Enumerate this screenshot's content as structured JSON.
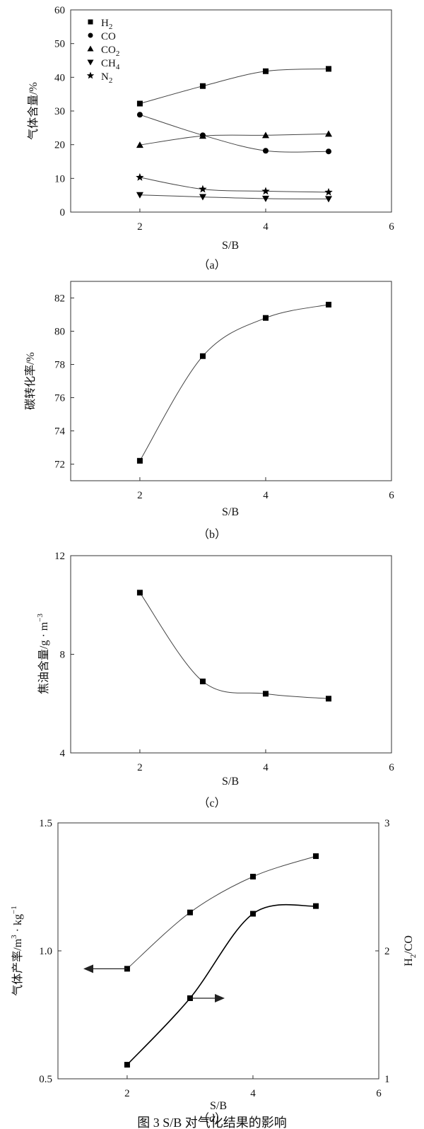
{
  "figure_caption": "图 3   S/B 对气化结果的影响",
  "chart_data": [
    {
      "type": "line",
      "caption": "（a）",
      "xlabel": "S/B",
      "ylabel": "气体含量/%",
      "xlim": [
        0.9,
        6
      ],
      "ylim": [
        0,
        60
      ],
      "xticks": [
        "2",
        "4",
        "6"
      ],
      "yticks": [
        "0",
        "10",
        "20",
        "30",
        "40",
        "50",
        "60"
      ],
      "legend_position": "top-left",
      "x": [
        2,
        3,
        4,
        5
      ],
      "series": [
        {
          "name": "H2",
          "legend_main": "H",
          "legend_sub": "2",
          "legend_tail": "",
          "marker": "square",
          "values": [
            32.2,
            37.4,
            41.8,
            42.5
          ]
        },
        {
          "name": "CO",
          "legend_main": "CO",
          "legend_sub": "",
          "legend_tail": "",
          "marker": "circle",
          "values": [
            28.9,
            22.8,
            18.2,
            18.0
          ]
        },
        {
          "name": "CO2",
          "legend_main": "CO",
          "legend_sub": "2",
          "legend_tail": "",
          "marker": "triangle-up",
          "values": [
            19.9,
            22.6,
            22.8,
            23.2
          ]
        },
        {
          "name": "CH4",
          "legend_main": "CH",
          "legend_sub": "4",
          "legend_tail": "",
          "marker": "triangle-down",
          "values": [
            5.1,
            4.5,
            4.0,
            3.9
          ]
        },
        {
          "name": "N2",
          "legend_main": "N",
          "legend_sub": "2",
          "legend_tail": "",
          "marker": "star",
          "values": [
            10.3,
            6.8,
            6.2,
            5.9
          ]
        }
      ]
    },
    {
      "type": "line",
      "caption": "（b）",
      "xlabel": "S/B",
      "ylabel": "碳转化率/%",
      "xlim": [
        0.9,
        6
      ],
      "ylim": [
        71,
        83
      ],
      "xticks": [
        "2",
        "4",
        "6"
      ],
      "yticks": [
        "72",
        "74",
        "76",
        "78",
        "80",
        "82"
      ],
      "x": [
        2,
        3,
        4,
        5
      ],
      "series": [
        {
          "marker": "square",
          "values": [
            72.2,
            78.5,
            80.8,
            81.6
          ]
        }
      ]
    },
    {
      "type": "line",
      "caption": "（c）",
      "xlabel": "S/B",
      "ylabel": "焦油含量/g · m",
      "ylabel_sup": "−3",
      "xlim": [
        0.9,
        6
      ],
      "ylim": [
        4,
        12
      ],
      "xticks": [
        "2",
        "4",
        "6"
      ],
      "yticks": [
        "4",
        "8",
        "12"
      ],
      "x": [
        2,
        3,
        4,
        5
      ],
      "series": [
        {
          "marker": "square",
          "values": [
            10.5,
            6.9,
            6.4,
            6.2
          ]
        }
      ]
    },
    {
      "type": "line",
      "caption": "（d）",
      "xlabel": "S/B",
      "ylabel_left": "气体产率/m",
      "ylabel_left_sup1": "3",
      "ylabel_left_mid": " · kg",
      "ylabel_left_sup2": "−1",
      "ylabel_right_main": "H",
      "ylabel_right_sub": "2",
      "ylabel_right_tail": "/CO",
      "xlim": [
        0.9,
        6
      ],
      "ylim_left": [
        0.5,
        1.5
      ],
      "ylim_right": [
        1,
        3
      ],
      "xticks": [
        "2",
        "4",
        "6"
      ],
      "yticks_left": [
        "0.5",
        "1.0",
        "1.5"
      ],
      "yticks_right": [
        "1",
        "2",
        "3"
      ],
      "x": [
        2,
        3,
        4,
        5
      ],
      "series": [
        {
          "axis": "left",
          "marker": "square",
          "values": [
            0.93,
            1.15,
            1.29,
            1.37
          ]
        },
        {
          "axis": "right",
          "marker": "square",
          "values": [
            1.11,
            1.63,
            2.29,
            2.35
          ]
        }
      ]
    }
  ]
}
